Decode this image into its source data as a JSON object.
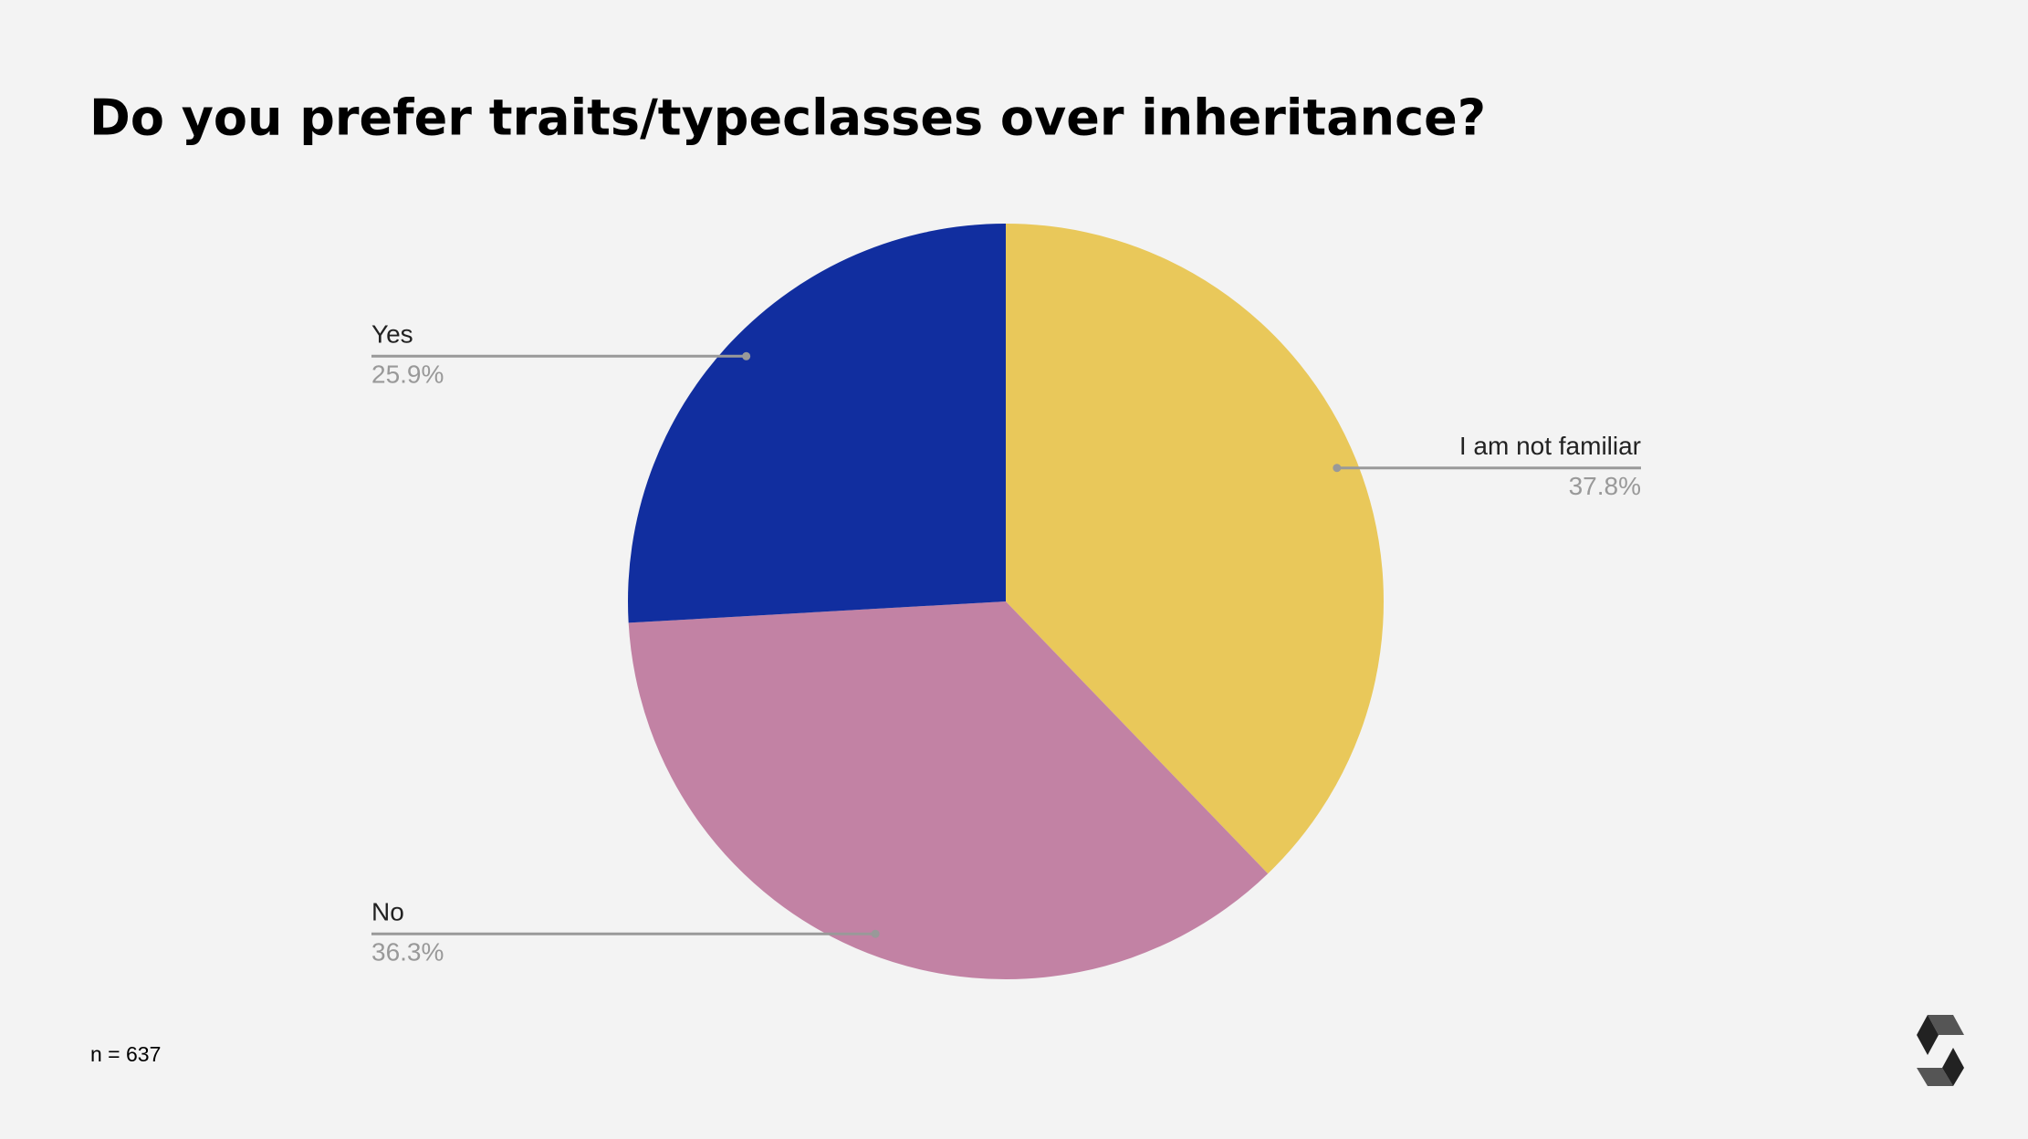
{
  "chart_data": {
    "type": "pie",
    "title": "Do you prefer traits/typeclasses over inheritance?",
    "categories": [
      "I am not familiar",
      "No",
      "Yes"
    ],
    "values": [
      37.8,
      36.3,
      25.9
    ],
    "value_labels": [
      "37.8%",
      "36.3%",
      "25.9%"
    ],
    "colors": [
      "#e9c85a",
      "#c282a4",
      "#112e9f"
    ],
    "note": "n = 637"
  }
}
